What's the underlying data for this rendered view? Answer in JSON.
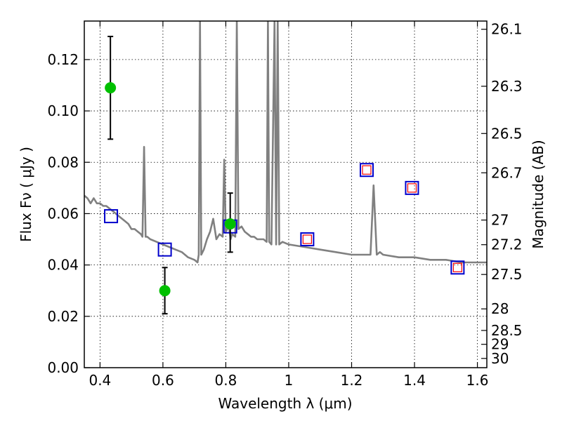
{
  "chart_data": {
    "type": "scatter",
    "xlabel": "Wavelength  λ (μm)",
    "ylabel": "Flux  Fν  ( μJy )",
    "y2label": "Magnitude (AB)",
    "xlim": [
      0.35,
      1.63
    ],
    "ylim": [
      0.0,
      0.135
    ],
    "grid": true,
    "x_ticks": [
      0.4,
      0.6,
      0.8,
      1.0,
      1.2,
      1.4,
      1.6
    ],
    "x_tick_labels": [
      "0.4",
      "0.6",
      "0.8",
      "1",
      "1.2",
      "1.4",
      "1.6"
    ],
    "y_ticks": [
      0.0,
      0.02,
      0.04,
      0.06,
      0.08,
      0.1,
      0.12
    ],
    "y_tick_labels": [
      "0.00",
      "0.02",
      "0.04",
      "0.06",
      "0.08",
      "0.10",
      "0.12"
    ],
    "y2_ticks": [
      {
        "flux": 0.1318,
        "label": "26.1"
      },
      {
        "flux": 0.1096,
        "label": "26.3"
      },
      {
        "flux": 0.0912,
        "label": "26.5"
      },
      {
        "flux": 0.0759,
        "label": "26.7"
      },
      {
        "flux": 0.0575,
        "label": "27"
      },
      {
        "flux": 0.0479,
        "label": "27.2"
      },
      {
        "flux": 0.0363,
        "label": "27.5"
      },
      {
        "flux": 0.0229,
        "label": "28"
      },
      {
        "flux": 0.0145,
        "label": "28.5"
      },
      {
        "flux": 0.0091,
        "label": "29"
      },
      {
        "flux": 0.0036,
        "label": "30"
      }
    ],
    "colors": {
      "spectrum": "#808080",
      "observed": "#00c000",
      "model_square": "#0000cc",
      "small_square": "#ff0000",
      "errorbar": "#000000"
    },
    "series": [
      {
        "kind": "spectrum",
        "points": [
          [
            0.35,
            0.067
          ],
          [
            0.36,
            0.066
          ],
          [
            0.37,
            0.064
          ],
          [
            0.38,
            0.066
          ],
          [
            0.39,
            0.064
          ],
          [
            0.4,
            0.064
          ],
          [
            0.41,
            0.063
          ],
          [
            0.42,
            0.063
          ],
          [
            0.43,
            0.062
          ],
          [
            0.44,
            0.061
          ],
          [
            0.45,
            0.06
          ],
          [
            0.46,
            0.059
          ],
          [
            0.47,
            0.058
          ],
          [
            0.48,
            0.057
          ],
          [
            0.49,
            0.056
          ],
          [
            0.5,
            0.054
          ],
          [
            0.51,
            0.054
          ],
          [
            0.52,
            0.053
          ],
          [
            0.53,
            0.052
          ],
          [
            0.535,
            0.051
          ],
          [
            0.54,
            0.086
          ],
          [
            0.545,
            0.051
          ],
          [
            0.55,
            0.051
          ],
          [
            0.56,
            0.05
          ],
          [
            0.58,
            0.049
          ],
          [
            0.6,
            0.048
          ],
          [
            0.62,
            0.047
          ],
          [
            0.64,
            0.046
          ],
          [
            0.66,
            0.045
          ],
          [
            0.68,
            0.043
          ],
          [
            0.7,
            0.042
          ],
          [
            0.71,
            0.041
          ],
          [
            0.714,
            0.044
          ],
          [
            0.718,
            0.135
          ],
          [
            0.722,
            0.044
          ],
          [
            0.73,
            0.046
          ],
          [
            0.74,
            0.05
          ],
          [
            0.75,
            0.053
          ],
          [
            0.76,
            0.058
          ],
          [
            0.77,
            0.05
          ],
          [
            0.78,
            0.052
          ],
          [
            0.79,
            0.051
          ],
          [
            0.795,
            0.081
          ],
          [
            0.8,
            0.053
          ],
          [
            0.81,
            0.055
          ],
          [
            0.815,
            0.05
          ],
          [
            0.82,
            0.052
          ],
          [
            0.83,
            0.051
          ],
          [
            0.835,
            0.135
          ],
          [
            0.84,
            0.054
          ],
          [
            0.85,
            0.055
          ],
          [
            0.86,
            0.053
          ],
          [
            0.87,
            0.052
          ],
          [
            0.88,
            0.051
          ],
          [
            0.89,
            0.051
          ],
          [
            0.9,
            0.05
          ],
          [
            0.91,
            0.05
          ],
          [
            0.92,
            0.05
          ],
          [
            0.93,
            0.049
          ],
          [
            0.934,
            0.135
          ],
          [
            0.938,
            0.049
          ],
          [
            0.945,
            0.048
          ],
          [
            0.955,
            0.135
          ],
          [
            0.96,
            0.048
          ],
          [
            0.965,
            0.135
          ],
          [
            0.97,
            0.048
          ],
          [
            0.98,
            0.049
          ],
          [
            1.0,
            0.048
          ],
          [
            1.05,
            0.047
          ],
          [
            1.1,
            0.046
          ],
          [
            1.15,
            0.045
          ],
          [
            1.2,
            0.044
          ],
          [
            1.25,
            0.044
          ],
          [
            1.26,
            0.044
          ],
          [
            1.27,
            0.071
          ],
          [
            1.28,
            0.044
          ],
          [
            1.29,
            0.045
          ],
          [
            1.3,
            0.044
          ],
          [
            1.35,
            0.043
          ],
          [
            1.4,
            0.043
          ],
          [
            1.45,
            0.042
          ],
          [
            1.5,
            0.042
          ],
          [
            1.55,
            0.041
          ],
          [
            1.6,
            0.041
          ],
          [
            1.63,
            0.041
          ]
        ]
      },
      {
        "kind": "observed",
        "points": [
          {
            "x": 0.433,
            "y": 0.109,
            "lo": 0.089,
            "hi": 0.129
          },
          {
            "x": 0.606,
            "y": 0.03,
            "lo": 0.021,
            "hi": 0.039
          },
          {
            "x": 0.814,
            "y": 0.056,
            "lo": 0.045,
            "hi": 0.068
          }
        ]
      },
      {
        "kind": "model_square",
        "points": [
          {
            "x": 0.435,
            "y": 0.059
          },
          {
            "x": 0.606,
            "y": 0.046
          },
          {
            "x": 0.814,
            "y": 0.055
          },
          {
            "x": 1.059,
            "y": 0.05
          },
          {
            "x": 1.248,
            "y": 0.077
          },
          {
            "x": 1.392,
            "y": 0.07
          },
          {
            "x": 1.537,
            "y": 0.039
          }
        ]
      },
      {
        "kind": "small_square",
        "points": [
          {
            "x": 1.059,
            "y": 0.05
          },
          {
            "x": 1.248,
            "y": 0.077
          },
          {
            "x": 1.392,
            "y": 0.07
          },
          {
            "x": 1.537,
            "y": 0.039
          }
        ]
      }
    ]
  }
}
